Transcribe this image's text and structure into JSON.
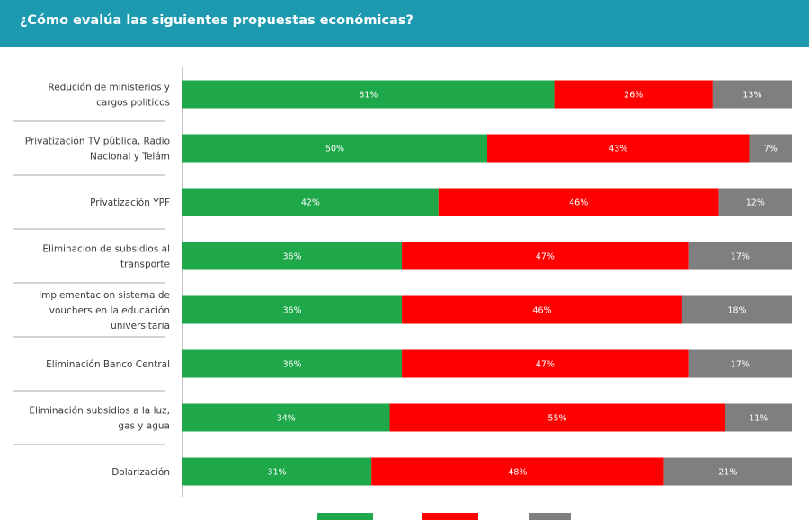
{
  "header": {
    "title": "¿Cómo evalúa las siguientes propuestas económicas?",
    "background": "#1e9ab0"
  },
  "chart_data": {
    "type": "bar",
    "orientation": "horizontal",
    "stacked": true,
    "title": "¿Cómo evalúa las siguientes propuestas económicas?",
    "categories": [
      [
        "Redución de ministerios y",
        "cargos políticos"
      ],
      [
        "Privatización TV pública, Radio",
        "Nacional y Telám"
      ],
      [
        "Privatización YPF"
      ],
      [
        "Eliminacion de subsidios al",
        "transporte"
      ],
      [
        "Implementacion sistema de",
        "vouchers en la educación",
        "universitaria"
      ],
      [
        "Eliminación Banco Central"
      ],
      [
        "Eliminación subsidios a la luz,",
        "gas y agua"
      ],
      [
        "Dolarización"
      ]
    ],
    "series": [
      {
        "color": "#1ea84a",
        "values": [
          61,
          50,
          42,
          36,
          36,
          36,
          34,
          31
        ]
      },
      {
        "color": "#ff0000",
        "values": [
          26,
          43,
          46,
          47,
          46,
          47,
          55,
          48
        ]
      },
      {
        "color": "#7f7f7f",
        "values": [
          13,
          7,
          12,
          17,
          18,
          17,
          11,
          21
        ]
      }
    ],
    "value_suffix": "%",
    "xlim": [
      0,
      100
    ],
    "legend": "bottom",
    "grid": false
  }
}
